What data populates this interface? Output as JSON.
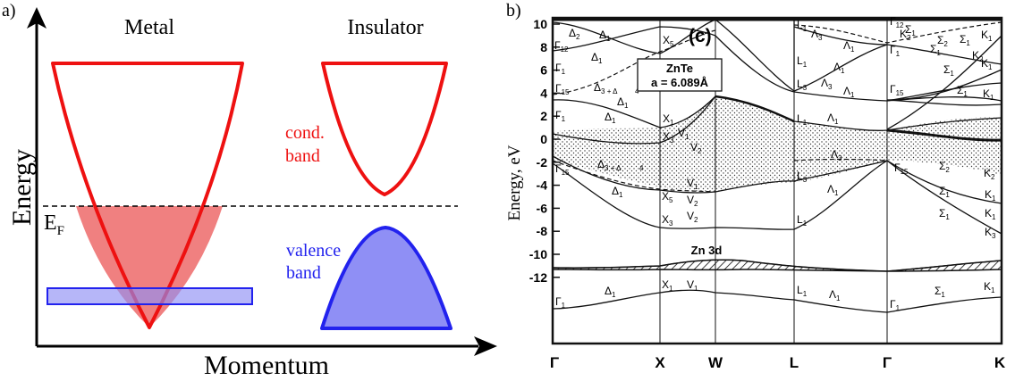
{
  "panel_a": {
    "label": "a)",
    "x_axis_label": "Momentum",
    "y_axis_label": "Energy",
    "metal_title": "Metal",
    "insulator_title": "Insulator",
    "fermi_label_main": "E",
    "fermi_label_sub": "F",
    "cond_band_line1": "cond.",
    "cond_band_line2": "band",
    "valence_band_line1": "valence",
    "valence_band_line2": "band",
    "colors": {
      "band_red": "#ee1111",
      "fill_red": "#f08080",
      "band_blue": "#2222ee",
      "fill_blue": "#8f8ff5"
    }
  },
  "panel_b": {
    "label": "b)",
    "y_axis_label": "Energy, eV",
    "panel_tag": "(c)",
    "material_name": "ZnTe",
    "lattice_constant": "a = 6.089Å",
    "d_band_label": "Zn 3d",
    "y_ticks": [
      "10",
      "8",
      "6",
      "4",
      "2",
      "0",
      "-2",
      "-4",
      "-6",
      "-8",
      "-10",
      "-12"
    ],
    "k_points": [
      "Γ",
      "X",
      "W",
      "L",
      "Γ",
      "K"
    ],
    "symmetry_labels": [
      {
        "m": "Δ",
        "s": "2"
      },
      {
        "m": "Δ",
        "s": "1"
      },
      {
        "m": "Γ",
        "s": "12"
      },
      {
        "m": "Δ",
        "s": "1"
      },
      {
        "m": "Γ",
        "s": "1"
      },
      {
        "m": "Γ",
        "s": "15"
      },
      {
        "m": "Δ",
        "s": "3 + Δ"
      },
      {
        "m": "",
        "s": "4"
      },
      {
        "m": "X",
        "s": "5"
      },
      {
        "m": "Δ",
        "s": "1"
      },
      {
        "m": "Γ",
        "s": "1"
      },
      {
        "m": "Δ",
        "s": "1"
      },
      {
        "m": "X",
        "s": "1"
      },
      {
        "m": "V",
        "s": "1"
      },
      {
        "m": "X",
        "s": "3"
      },
      {
        "m": "V",
        "s": "2"
      },
      {
        "m": "Γ",
        "s": "15"
      },
      {
        "m": "Δ",
        "s": "3 + Δ"
      },
      {
        "m": "",
        "s": "4"
      },
      {
        "m": "Δ",
        "s": "1"
      },
      {
        "m": "X",
        "s": "5"
      },
      {
        "m": "V",
        "s": "1"
      },
      {
        "m": "V",
        "s": "2"
      },
      {
        "m": "X",
        "s": "3"
      },
      {
        "m": "V",
        "s": "2"
      },
      {
        "m": "X",
        "s": "1"
      },
      {
        "m": "V",
        "s": "1"
      },
      {
        "m": "Γ",
        "s": "1"
      },
      {
        "m": "Δ",
        "s": "1"
      },
      {
        "m": "L",
        "s": "1"
      },
      {
        "m": "Λ",
        "s": "3"
      },
      {
        "m": "Λ",
        "s": "1"
      },
      {
        "m": "L",
        "s": "1"
      },
      {
        "m": "Λ",
        "s": "1"
      },
      {
        "m": "L",
        "s": "3"
      },
      {
        "m": "Λ",
        "s": "3"
      },
      {
        "m": "Λ",
        "s": "1"
      },
      {
        "m": "L",
        "s": "1"
      },
      {
        "m": "Λ",
        "s": "1"
      },
      {
        "m": "Λ",
        "s": "3"
      },
      {
        "m": "L",
        "s": "3"
      },
      {
        "m": "Λ",
        "s": "1"
      },
      {
        "m": "L",
        "s": "1"
      },
      {
        "m": "L",
        "s": "1"
      },
      {
        "m": "Λ",
        "s": "1"
      },
      {
        "m": "Γ",
        "s": "12"
      },
      {
        "m": "Σ",
        "s": "1"
      },
      {
        "m": "K",
        "s": "2"
      },
      {
        "m": "Σ",
        "s": "2"
      },
      {
        "m": "Σ",
        "s": "1"
      },
      {
        "m": "K",
        "s": "2"
      },
      {
        "m": "K",
        "s": "1"
      },
      {
        "m": "Γ",
        "s": "1"
      },
      {
        "m": "Σ",
        "s": "1"
      },
      {
        "m": "Γ",
        "s": "15"
      },
      {
        "m": "Σ",
        "s": "1"
      },
      {
        "m": "K",
        "s": "1"
      },
      {
        "m": "Σ",
        "s": "1"
      },
      {
        "m": "K",
        "s": "1"
      },
      {
        "m": "Γ",
        "s": "15"
      },
      {
        "m": "Σ",
        "s": "2"
      },
      {
        "m": "K",
        "s": "2"
      },
      {
        "m": "Σ",
        "s": "1"
      },
      {
        "m": "K",
        "s": "1"
      },
      {
        "m": "Σ",
        "s": "1"
      },
      {
        "m": "K",
        "s": "1"
      },
      {
        "m": "K",
        "s": "3"
      },
      {
        "m": "Γ",
        "s": "1"
      },
      {
        "m": "Σ",
        "s": "1"
      },
      {
        "m": "K",
        "s": "1"
      }
    ]
  }
}
